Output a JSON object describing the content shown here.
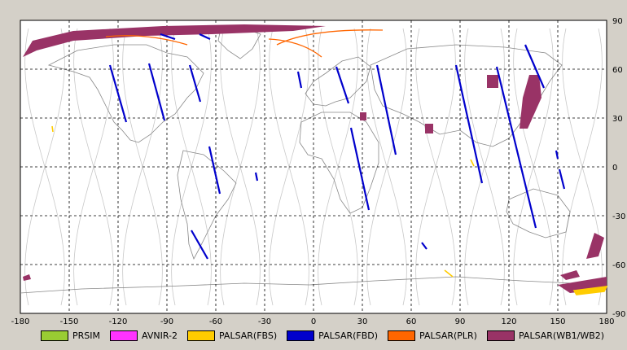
{
  "map": {
    "x_ticks": [
      "-180",
      "-150",
      "-120",
      "-90",
      "-60",
      "-30",
      "0",
      "30",
      "60",
      "90",
      "120",
      "150",
      "180"
    ],
    "y_ticks": [
      "90",
      "60",
      "30",
      "0",
      "-30",
      "-60",
      "-90"
    ],
    "x_range": [
      -180,
      180
    ],
    "y_range": [
      -90,
      90
    ],
    "grid": "dashed black every 30°",
    "projection": "equirectangular"
  },
  "legend": [
    {
      "label": "PRSIM",
      "color": "#99cc33"
    },
    {
      "label": "AVNIR-2",
      "color": "#ff33ff"
    },
    {
      "label": "PALSAR(FBS)",
      "color": "#ffcc00"
    },
    {
      "label": "PALSAR(FBD)",
      "color": "#0000cc"
    },
    {
      "label": "PALSAR(PLR)",
      "color": "#ff6600"
    },
    {
      "label": "PALSAR(WB1/WB2)",
      "color": "#993366"
    }
  ],
  "colors": {
    "background": "#d4d0c8",
    "map_background": "#ffffff",
    "coastline": "#888888",
    "orbit_track": "#c8c8c8",
    "grid": "#000000"
  }
}
